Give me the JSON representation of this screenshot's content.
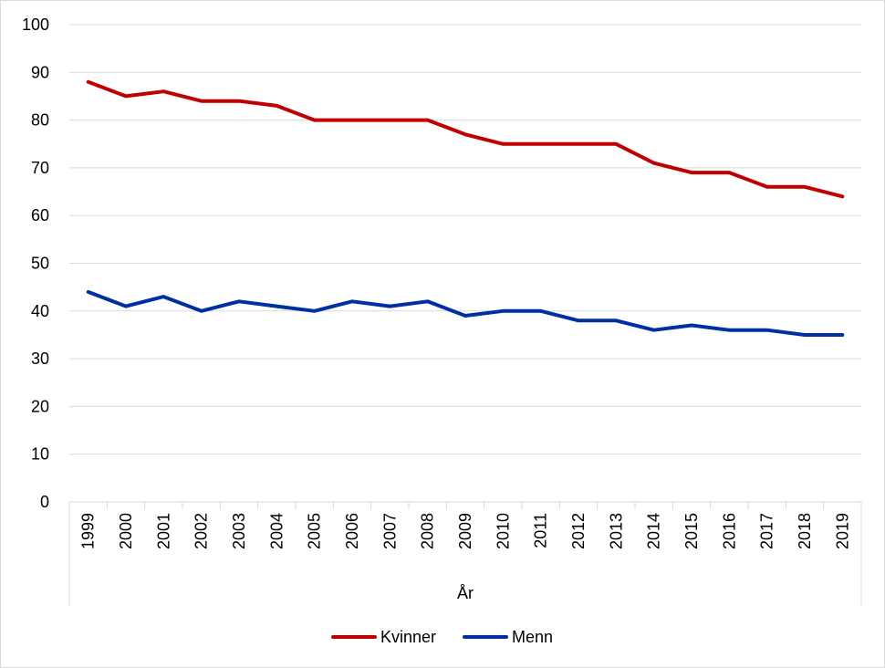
{
  "chart_data": {
    "type": "line",
    "title": "",
    "xlabel": "År",
    "ylabel": "",
    "ylim": [
      0,
      100
    ],
    "yticks": [
      0,
      10,
      20,
      30,
      40,
      50,
      60,
      70,
      80,
      90,
      100
    ],
    "grid": true,
    "legend_position": "bottom",
    "categories": [
      "1999",
      "2000",
      "2001",
      "2002",
      "2003",
      "2004",
      "2005",
      "2006",
      "2007",
      "2008",
      "2009",
      "2010",
      "2011",
      "2012",
      "2013",
      "2014",
      "2015",
      "2016",
      "2017",
      "2018",
      "2019"
    ],
    "series": [
      {
        "name": "Kvinner",
        "color": "#c00000",
        "values": [
          88,
          85,
          86,
          84,
          84,
          83,
          80,
          80,
          80,
          80,
          77,
          75,
          75,
          75,
          75,
          71,
          69,
          69,
          66,
          66,
          64
        ]
      },
      {
        "name": "Menn",
        "color": "#002fa3",
        "values": [
          44,
          41,
          43,
          40,
          42,
          41,
          40,
          42,
          41,
          42,
          39,
          40,
          40,
          38,
          38,
          36,
          37,
          36,
          36,
          35,
          35
        ]
      }
    ]
  }
}
